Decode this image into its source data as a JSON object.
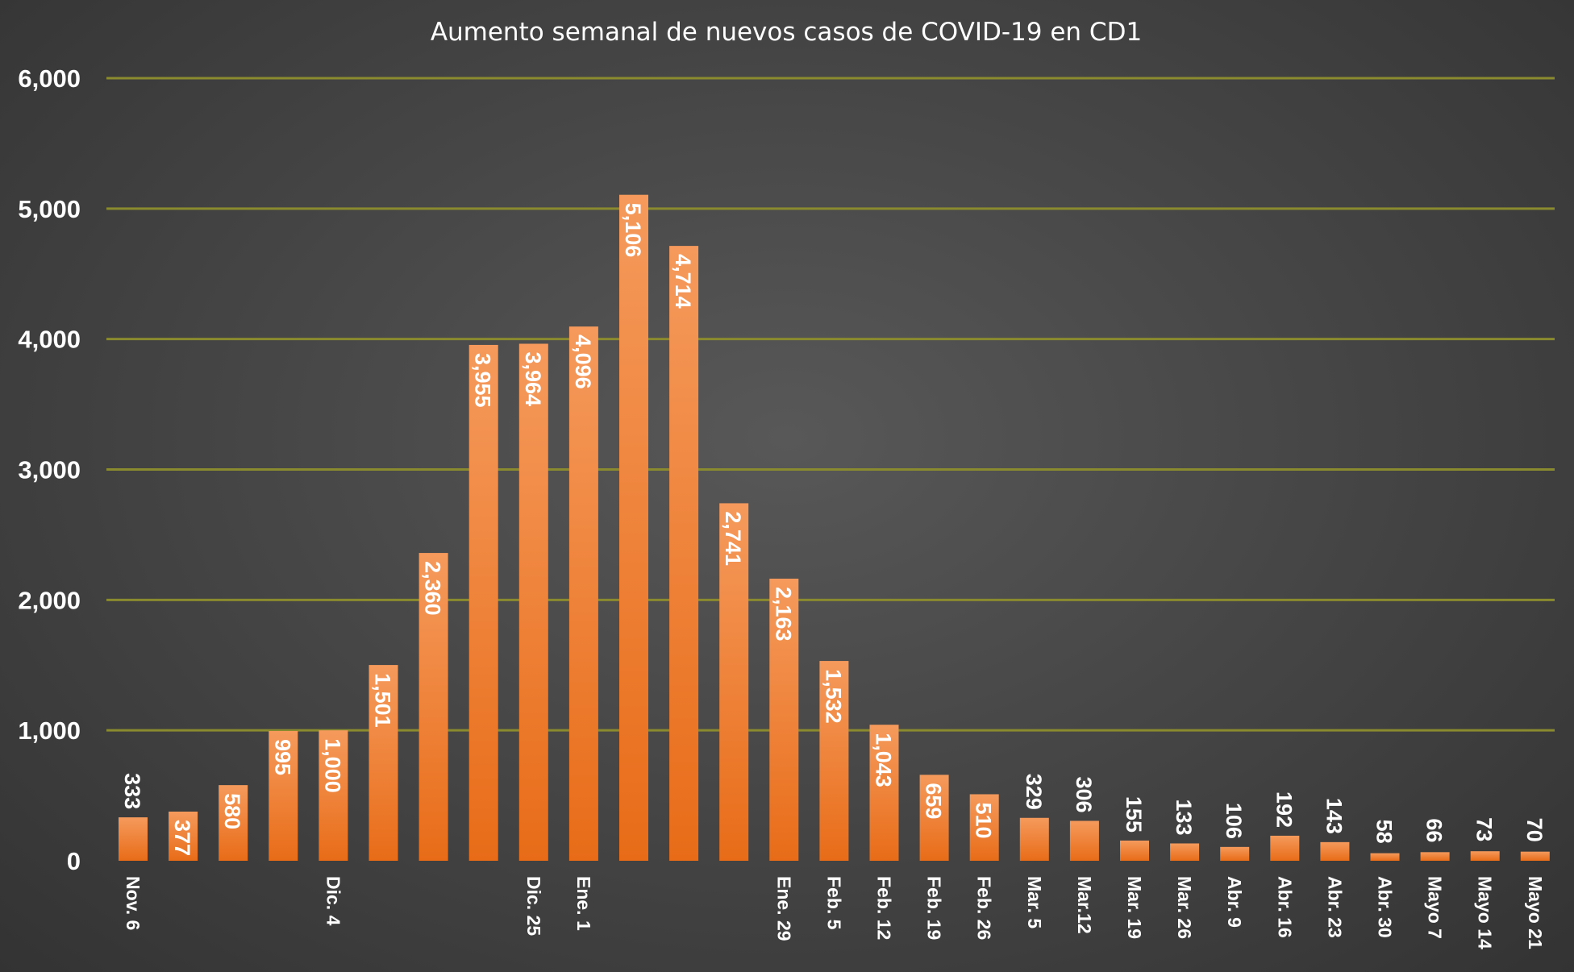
{
  "chart_data": {
    "type": "bar",
    "title": "Aumento semanal de nuevos casos de COVID-19 en CD1",
    "xlabel": "",
    "ylabel": "",
    "ylim": [
      0,
      6000
    ],
    "yticks": [
      "0",
      "1,000",
      "2,000",
      "3,000",
      "4,000",
      "5,000",
      "6,000"
    ],
    "grid": true,
    "legend": "none",
    "categories": [
      "Nov. 6",
      "",
      "",
      "",
      "Dic. 4",
      "",
      "",
      "",
      "Dic. 25",
      "Ene. 1",
      "",
      "",
      "",
      "Ene. 29",
      "Feb. 5",
      "Feb. 12",
      "Feb. 19",
      "Feb. 26",
      "Mar. 5",
      "Mar.12",
      "Mar. 19",
      "Mar. 26",
      "Abr. 9",
      "Abr. 16",
      "Abr. 23",
      "Abr. 30",
      "Mayo 7",
      "Mayo 14",
      "Mayo 21"
    ],
    "values": [
      333,
      377,
      580,
      995,
      1000,
      1501,
      2360,
      3955,
      3964,
      4096,
      5106,
      4714,
      2741,
      2163,
      1532,
      1043,
      659,
      510,
      329,
      306,
      155,
      133,
      106,
      192,
      143,
      58,
      66,
      73,
      70
    ],
    "value_labels": [
      "333",
      "377",
      "580",
      "995",
      "1,000",
      "1,501",
      "2,360",
      "3,955",
      "3,964",
      "4,096",
      "5,106",
      "4,714",
      "2,741",
      "2,163",
      "1,532",
      "1,043",
      "659",
      "510",
      "329",
      "306",
      "155",
      "133",
      "106",
      "192",
      "143",
      "58",
      "66",
      "73",
      "70"
    ],
    "colors": {
      "bar_top": "#f59a5c",
      "bar_bottom": "#e86c18",
      "grid": "#8a8a2e",
      "text": "#ffffff"
    }
  }
}
